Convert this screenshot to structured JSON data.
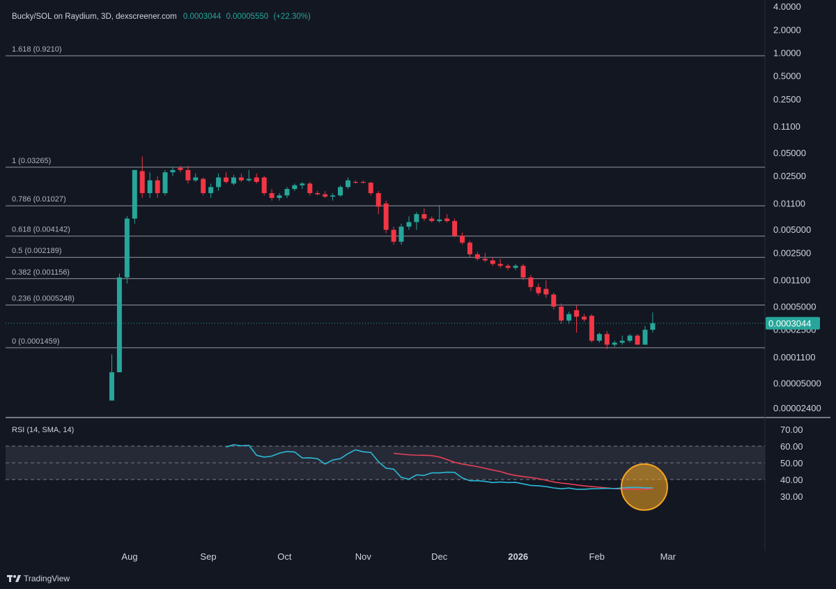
{
  "header": {
    "symbol": "Bucky/SOL on Raydium, 3D, dexscreener.com",
    "price": "0.0003044",
    "change_abs": "0.00005550",
    "change_pct": "(+22.30%)"
  },
  "colors": {
    "background": "#131722",
    "up": "#26a69a",
    "down": "#f23645",
    "rsi": "#2bbbd8",
    "rsi_sma": "#e84057",
    "highlight": "#f5a623",
    "fib_line": "#9598a1"
  },
  "watermark": "TradingView",
  "chart_data": {
    "type": "candlestick",
    "price_axis": {
      "scale": "log",
      "tick_labels": [
        "4.0000",
        "2.0000",
        "1.0000",
        "0.5000",
        "0.2500",
        "0.1100",
        "0.05000",
        "0.02500",
        "0.01100",
        "0.005000",
        "0.002500",
        "0.001100",
        "0.0005000",
        "0.0002500",
        "0.0001100",
        "0.00005000",
        "0.00002400"
      ],
      "current_price_label": "0.0003044",
      "current_price": 0.0003044
    },
    "time_axis": {
      "tick_labels": [
        "Aug",
        "Sep",
        "Oct",
        "Nov",
        "Dec",
        "2026",
        "Feb",
        "Mar"
      ]
    },
    "fib_levels": [
      {
        "label": "1.618 (0.9210)",
        "value": 0.921
      },
      {
        "label": "1 (0.03265)",
        "value": 0.03265
      },
      {
        "label": "0.786 (0.01027)",
        "value": 0.01027
      },
      {
        "label": "0.618 (0.004142)",
        "value": 0.004142
      },
      {
        "label": "0.5 (0.002189)",
        "value": 0.002189
      },
      {
        "label": "0.382 (0.001156)",
        "value": 0.001156
      },
      {
        "label": "0.236 (0.0005248)",
        "value": 0.0005248
      },
      {
        "label": "0 (0.0001459)",
        "value": 0.0001459
      }
    ],
    "candles": [
      {
        "o": 3e-05,
        "h": 0.00012,
        "l": 3e-05,
        "c": 7e-05,
        "d": "2025-07-25"
      },
      {
        "o": 7e-05,
        "h": 0.00135,
        "l": 7e-05,
        "c": 0.0012,
        "d": "2025-07-28"
      },
      {
        "o": 0.0012,
        "h": 0.0075,
        "l": 0.001,
        "c": 0.007,
        "d": "2025-07-31"
      },
      {
        "o": 0.007,
        "h": 0.03,
        "l": 0.006,
        "c": 0.03,
        "d": "2025-08-03"
      },
      {
        "o": 0.029,
        "h": 0.045,
        "l": 0.013,
        "c": 0.015,
        "d": "2025-08-06"
      },
      {
        "o": 0.015,
        "h": 0.028,
        "l": 0.013,
        "c": 0.022,
        "d": "2025-08-09"
      },
      {
        "o": 0.022,
        "h": 0.025,
        "l": 0.013,
        "c": 0.015,
        "d": "2025-08-12"
      },
      {
        "o": 0.015,
        "h": 0.03,
        "l": 0.014,
        "c": 0.028,
        "d": "2025-08-15"
      },
      {
        "o": 0.028,
        "h": 0.033,
        "l": 0.025,
        "c": 0.03,
        "d": "2025-08-18"
      },
      {
        "o": 0.032,
        "h": 0.034,
        "l": 0.028,
        "c": 0.03,
        "d": "2025-08-21"
      },
      {
        "o": 0.03,
        "h": 0.034,
        "l": 0.02,
        "c": 0.022,
        "d": "2025-08-24"
      },
      {
        "o": 0.022,
        "h": 0.027,
        "l": 0.021,
        "c": 0.024,
        "d": "2025-08-27"
      },
      {
        "o": 0.023,
        "h": 0.024,
        "l": 0.014,
        "c": 0.015,
        "d": "2025-08-30"
      },
      {
        "o": 0.015,
        "h": 0.02,
        "l": 0.013,
        "c": 0.018,
        "d": "2025-09-02"
      },
      {
        "o": 0.018,
        "h": 0.027,
        "l": 0.016,
        "c": 0.024,
        "d": "2025-09-05"
      },
      {
        "o": 0.024,
        "h": 0.028,
        "l": 0.02,
        "c": 0.021,
        "d": "2025-09-08"
      },
      {
        "o": 0.02,
        "h": 0.026,
        "l": 0.019,
        "c": 0.024,
        "d": "2025-09-11"
      },
      {
        "o": 0.024,
        "h": 0.027,
        "l": 0.021,
        "c": 0.022,
        "d": "2025-09-14"
      },
      {
        "o": 0.022,
        "h": 0.03,
        "l": 0.021,
        "c": 0.023,
        "d": "2025-09-17"
      },
      {
        "o": 0.024,
        "h": 0.027,
        "l": 0.02,
        "c": 0.021,
        "d": "2025-09-20"
      },
      {
        "o": 0.024,
        "h": 0.025,
        "l": 0.014,
        "c": 0.015,
        "d": "2025-09-23"
      },
      {
        "o": 0.015,
        "h": 0.017,
        "l": 0.012,
        "c": 0.013,
        "d": "2025-09-26"
      },
      {
        "o": 0.013,
        "h": 0.015,
        "l": 0.012,
        "c": 0.014,
        "d": "2025-09-29"
      },
      {
        "o": 0.014,
        "h": 0.018,
        "l": 0.013,
        "c": 0.017,
        "d": "2025-10-02"
      },
      {
        "o": 0.017,
        "h": 0.02,
        "l": 0.016,
        "c": 0.019,
        "d": "2025-10-05"
      },
      {
        "o": 0.019,
        "h": 0.021,
        "l": 0.017,
        "c": 0.02,
        "d": "2025-10-08"
      },
      {
        "o": 0.02,
        "h": 0.021,
        "l": 0.014,
        "c": 0.015,
        "d": "2025-10-11"
      },
      {
        "o": 0.015,
        "h": 0.016,
        "l": 0.014,
        "c": 0.0145,
        "d": "2025-10-14"
      },
      {
        "o": 0.0145,
        "h": 0.016,
        "l": 0.013,
        "c": 0.0135,
        "d": "2025-10-17"
      },
      {
        "o": 0.0135,
        "h": 0.015,
        "l": 0.012,
        "c": 0.014,
        "d": "2025-10-20"
      },
      {
        "o": 0.014,
        "h": 0.019,
        "l": 0.0135,
        "c": 0.018,
        "d": "2025-10-23"
      },
      {
        "o": 0.018,
        "h": 0.024,
        "l": 0.017,
        "c": 0.022,
        "d": "2025-10-26"
      },
      {
        "o": 0.021,
        "h": 0.022,
        "l": 0.02,
        "c": 0.0205,
        "d": "2025-10-29"
      },
      {
        "o": 0.021,
        "h": 0.022,
        "l": 0.02,
        "c": 0.0205,
        "d": "2025-11-01"
      },
      {
        "o": 0.0205,
        "h": 0.021,
        "l": 0.014,
        "c": 0.015,
        "d": "2025-11-04"
      },
      {
        "o": 0.015,
        "h": 0.016,
        "l": 0.008,
        "c": 0.01,
        "d": "2025-11-07"
      },
      {
        "o": 0.011,
        "h": 0.012,
        "l": 0.0045,
        "c": 0.005,
        "d": "2025-11-10"
      },
      {
        "o": 0.005,
        "h": 0.0055,
        "l": 0.0032,
        "c": 0.0035,
        "d": "2025-11-13"
      },
      {
        "o": 0.0035,
        "h": 0.006,
        "l": 0.0032,
        "c": 0.0055,
        "d": "2025-11-16"
      },
      {
        "o": 0.0055,
        "h": 0.0075,
        "l": 0.005,
        "c": 0.0063,
        "d": "2025-11-19"
      },
      {
        "o": 0.0063,
        "h": 0.0085,
        "l": 0.005,
        "c": 0.008,
        "d": "2025-11-22"
      },
      {
        "o": 0.008,
        "h": 0.0095,
        "l": 0.0065,
        "c": 0.007,
        "d": "2025-11-25"
      },
      {
        "o": 0.007,
        "h": 0.0075,
        "l": 0.0062,
        "c": 0.0065,
        "d": "2025-11-28"
      },
      {
        "o": 0.0065,
        "h": 0.0105,
        "l": 0.0062,
        "c": 0.0068,
        "d": "2025-12-01"
      },
      {
        "o": 0.007,
        "h": 0.008,
        "l": 0.0062,
        "c": 0.0065,
        "d": "2025-12-04"
      },
      {
        "o": 0.0065,
        "h": 0.007,
        "l": 0.004,
        "c": 0.0042,
        "d": "2025-12-07"
      },
      {
        "o": 0.0042,
        "h": 0.0046,
        "l": 0.0032,
        "c": 0.0034,
        "d": "2025-12-10"
      },
      {
        "o": 0.0034,
        "h": 0.0036,
        "l": 0.0022,
        "c": 0.0024,
        "d": "2025-12-13"
      },
      {
        "o": 0.0024,
        "h": 0.0026,
        "l": 0.002,
        "c": 0.0021,
        "d": "2025-12-16"
      },
      {
        "o": 0.0021,
        "h": 0.0025,
        "l": 0.0019,
        "c": 0.002,
        "d": "2025-12-19"
      },
      {
        "o": 0.002,
        "h": 0.0022,
        "l": 0.0017,
        "c": 0.0018,
        "d": "2025-12-22"
      },
      {
        "o": 0.0018,
        "h": 0.0021,
        "l": 0.0016,
        "c": 0.0017,
        "d": "2025-12-25"
      },
      {
        "o": 0.0017,
        "h": 0.0018,
        "l": 0.0015,
        "c": 0.0016,
        "d": "2025-12-28"
      },
      {
        "o": 0.0016,
        "h": 0.0018,
        "l": 0.0015,
        "c": 0.0017,
        "d": "2025-12-31"
      },
      {
        "o": 0.0017,
        "h": 0.0018,
        "l": 0.0011,
        "c": 0.0012,
        "d": "2026-01-03"
      },
      {
        "o": 0.0012,
        "h": 0.0013,
        "l": 0.0008,
        "c": 0.0009,
        "d": "2026-01-06"
      },
      {
        "o": 0.0009,
        "h": 0.001,
        "l": 0.0007,
        "c": 0.00075,
        "d": "2026-01-09"
      },
      {
        "o": 0.00085,
        "h": 0.0011,
        "l": 0.00065,
        "c": 0.00072,
        "d": "2026-01-12"
      },
      {
        "o": 0.00072,
        "h": 0.00076,
        "l": 0.00046,
        "c": 0.0005,
        "d": "2026-01-15"
      },
      {
        "o": 0.0005,
        "h": 0.00055,
        "l": 0.0003,
        "c": 0.00033,
        "d": "2026-01-18"
      },
      {
        "o": 0.00033,
        "h": 0.00043,
        "l": 0.0003,
        "c": 0.0004,
        "d": "2026-01-21"
      },
      {
        "o": 0.00045,
        "h": 0.00052,
        "l": 0.00023,
        "c": 0.00037,
        "d": "2026-01-24"
      },
      {
        "o": 0.00037,
        "h": 0.0004,
        "l": 0.00032,
        "c": 0.00034,
        "d": "2026-01-27"
      },
      {
        "o": 0.00038,
        "h": 0.0004,
        "l": 0.00017,
        "c": 0.00018,
        "d": "2026-01-30"
      },
      {
        "o": 0.00018,
        "h": 0.00023,
        "l": 0.00017,
        "c": 0.00022,
        "d": "2026-02-02"
      },
      {
        "o": 0.00022,
        "h": 0.00024,
        "l": 0.00014,
        "c": 0.00016,
        "d": "2026-02-05"
      },
      {
        "o": 0.00016,
        "h": 0.00018,
        "l": 0.00015,
        "c": 0.00017,
        "d": "2026-02-08"
      },
      {
        "o": 0.00017,
        "h": 0.00021,
        "l": 0.00016,
        "c": 0.00018,
        "d": "2026-02-11"
      },
      {
        "o": 0.00018,
        "h": 0.00022,
        "l": 0.00017,
        "c": 0.00021,
        "d": "2026-02-14"
      },
      {
        "o": 0.00021,
        "h": 0.00022,
        "l": 0.00016,
        "c": 0.00016,
        "d": "2026-02-17"
      },
      {
        "o": 0.00016,
        "h": 0.00028,
        "l": 0.00016,
        "c": 0.00025,
        "d": "2026-02-20"
      },
      {
        "o": 0.00025,
        "h": 0.00042,
        "l": 0.00023,
        "c": 0.0003044,
        "d": "2026-02-23"
      }
    ],
    "rsi": {
      "label": "RSI (14, SMA, 14)",
      "tick_labels": [
        "70.00",
        "60.00",
        "50.00",
        "40.00",
        "30.00"
      ],
      "band": [
        40,
        60
      ],
      "range": [
        22,
        70
      ],
      "rsi_values": [
        59.5,
        60.8,
        60.2,
        60.5,
        54.5,
        53.4,
        54,
        55.8,
        56.8,
        56.5,
        52.9,
        53,
        52.5,
        49.3,
        51.7,
        52.5,
        55.5,
        57.8,
        56.6,
        56.2,
        50.7,
        46.8,
        46.2,
        41.3,
        40.2,
        42.8,
        42.5,
        44,
        44,
        44.4,
        44.3,
        41,
        39.3,
        39.3,
        38.9,
        38.2,
        38.6,
        38.2,
        38.3,
        37.4,
        36.5,
        36.3,
        35.8,
        35,
        34.5,
        34.9,
        34.2,
        34.2,
        34.5,
        34.6,
        34.8,
        34.6,
        35,
        35.3,
        35.3,
        35.1,
        35
      ],
      "rsi_start_index": 15,
      "sma_values": [
        55.7,
        55.2,
        54.8,
        54.6,
        54.5,
        54.3,
        53.5,
        52,
        50.3,
        49.3,
        48.5,
        47.7,
        46.7,
        45.7,
        44.8,
        43.4,
        42.4,
        41.8,
        41.2,
        40.5,
        39.6,
        38.6,
        37.9,
        37.4,
        36.8,
        36.2,
        35.8,
        35.4,
        35,
        34.6,
        34.4,
        34.3,
        34.2,
        34.3,
        34.5
      ],
      "sma_start_index": 37,
      "highlight_note": ""
    }
  }
}
